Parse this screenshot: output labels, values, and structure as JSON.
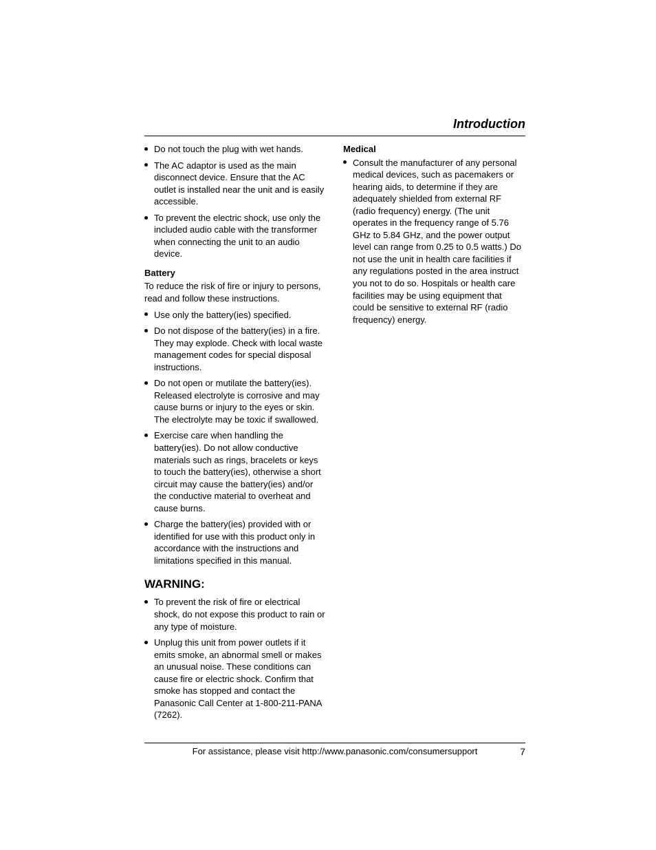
{
  "header": {
    "title": "Introduction"
  },
  "left": {
    "top_bullets": [
      "Do not touch the plug with wet hands.",
      "The AC adaptor is used as the main disconnect device. Ensure that the AC outlet is installed near the unit and is easily accessible.",
      "To prevent the electric shock, use only the included audio cable with the transformer when connecting the unit to an audio device."
    ],
    "battery_heading": "Battery",
    "battery_intro": "To reduce the risk of fire or injury to persons, read and follow these instructions.",
    "battery_bullets": [
      "Use only the battery(ies) specified.",
      "Do not dispose of the battery(ies) in a fire. They may explode. Check with local waste management codes for special disposal instructions.",
      "Do not open or mutilate the battery(ies). Released electrolyte is corrosive and may cause burns or injury to the eyes or skin. The electrolyte may be toxic if swallowed.",
      "Exercise care when handling the battery(ies). Do not allow conductive materials such as rings, bracelets or keys to touch the battery(ies), otherwise a short circuit may cause the battery(ies) and/or the conductive material to overheat and cause burns.",
      "Charge the battery(ies) provided with or identified for use with this product only in accordance with the instructions and limitations specified in this manual."
    ],
    "warning_heading": "WARNING:",
    "warning_bullets": [
      "To prevent the risk of fire or electrical shock, do not expose this product to rain or any type of moisture.",
      "Unplug this unit from power outlets if it emits smoke, an abnormal smell or makes an unusual noise. These conditions can cause fire or electric shock. Confirm that smoke has stopped and contact the Panasonic Call Center at 1-800-211-PANA (7262)."
    ]
  },
  "right": {
    "medical_heading": "Medical",
    "medical_bullets": [
      "Consult the manufacturer of any personal medical devices, such as pacemakers or hearing aids, to determine if they are adequately shielded from external RF (radio frequency) energy. (The unit operates in the frequency range of 5.76 GHz to 5.84 GHz, and the power output level can range from 0.25 to 0.5 watts.) Do not use the unit in health care facilities if any regulations posted in the area instruct you not to do so. Hospitals or health care facilities may be using equipment that could be sensitive to external RF (radio frequency) energy."
    ]
  },
  "footer": {
    "text": "For assistance, please visit http://www.panasonic.com/consumersupport",
    "page": "7"
  }
}
